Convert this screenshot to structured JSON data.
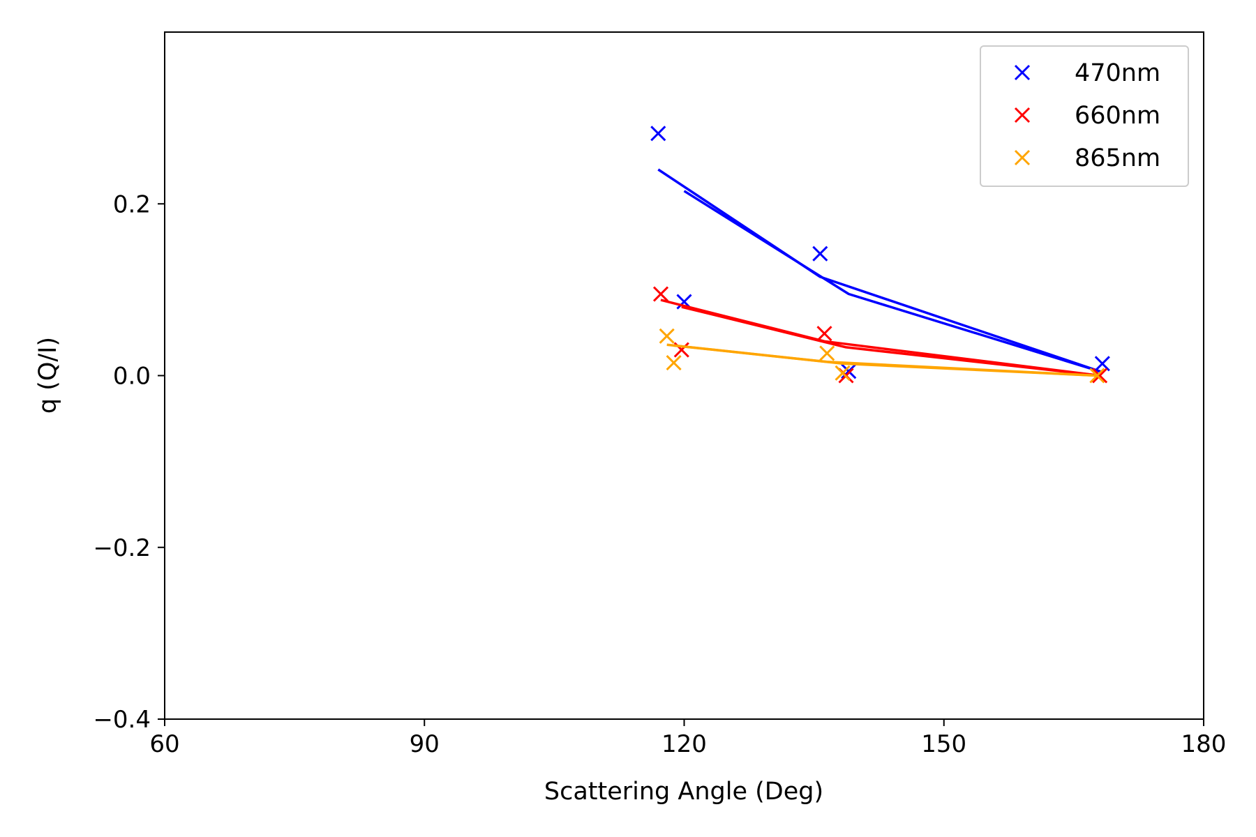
{
  "chart_data": {
    "type": "scatter",
    "title": "",
    "xlabel": "Scattering Angle (Deg)",
    "ylabel": "q (Q/I)",
    "xlim": [
      60,
      180
    ],
    "ylim": [
      -0.4,
      0.4
    ],
    "xticks": [
      60,
      90,
      120,
      150,
      180
    ],
    "xtick_labels": [
      "60",
      "90",
      "120",
      "150",
      "180"
    ],
    "yticks": [
      -0.4,
      -0.2,
      0.0,
      0.2
    ],
    "ytick_labels": [
      "−0.4",
      "−0.2",
      "0.0",
      "0.2"
    ],
    "grid": false,
    "legend_position": "top-right",
    "series": [
      {
        "name": "470nm",
        "color": "#0000ff",
        "points": [
          {
            "x": 117.0,
            "y": 0.282
          },
          {
            "x": 120.0,
            "y": 0.086
          },
          {
            "x": 135.7,
            "y": 0.142
          },
          {
            "x": 139.0,
            "y": 0.005
          },
          {
            "x": 168.3,
            "y": 0.014
          }
        ],
        "fit_lines": [
          [
            {
              "x": 117.0,
              "y": 0.24
            },
            {
              "x": 135.7,
              "y": 0.115
            },
            {
              "x": 168.3,
              "y": 0.004
            }
          ],
          [
            {
              "x": 120.0,
              "y": 0.215
            },
            {
              "x": 139.0,
              "y": 0.095
            },
            {
              "x": 168.3,
              "y": 0.004
            }
          ]
        ]
      },
      {
        "name": "660nm",
        "color": "#ff0000",
        "points": [
          {
            "x": 117.3,
            "y": 0.095
          },
          {
            "x": 119.7,
            "y": 0.03
          },
          {
            "x": 136.2,
            "y": 0.049
          },
          {
            "x": 138.7,
            "y": 0.0
          },
          {
            "x": 168.0,
            "y": 0.0
          }
        ],
        "fit_lines": [
          [
            {
              "x": 117.3,
              "y": 0.088
            },
            {
              "x": 136.2,
              "y": 0.04
            },
            {
              "x": 168.0,
              "y": 0.0
            }
          ],
          [
            {
              "x": 119.7,
              "y": 0.08
            },
            {
              "x": 138.7,
              "y": 0.033
            },
            {
              "x": 168.0,
              "y": 0.0
            }
          ]
        ]
      },
      {
        "name": "865nm",
        "color": "#ffa500",
        "points": [
          {
            "x": 118.0,
            "y": 0.046
          },
          {
            "x": 118.8,
            "y": 0.015
          },
          {
            "x": 136.5,
            "y": 0.026
          },
          {
            "x": 138.3,
            "y": 0.003
          },
          {
            "x": 167.7,
            "y": 0.0
          }
        ],
        "fit_lines": [
          [
            {
              "x": 118.0,
              "y": 0.036
            },
            {
              "x": 136.5,
              "y": 0.016
            },
            {
              "x": 167.7,
              "y": 0.0
            }
          ],
          [
            {
              "x": 118.8,
              "y": 0.035
            },
            {
              "x": 138.3,
              "y": 0.014
            },
            {
              "x": 167.7,
              "y": 0.0
            }
          ]
        ]
      }
    ]
  }
}
